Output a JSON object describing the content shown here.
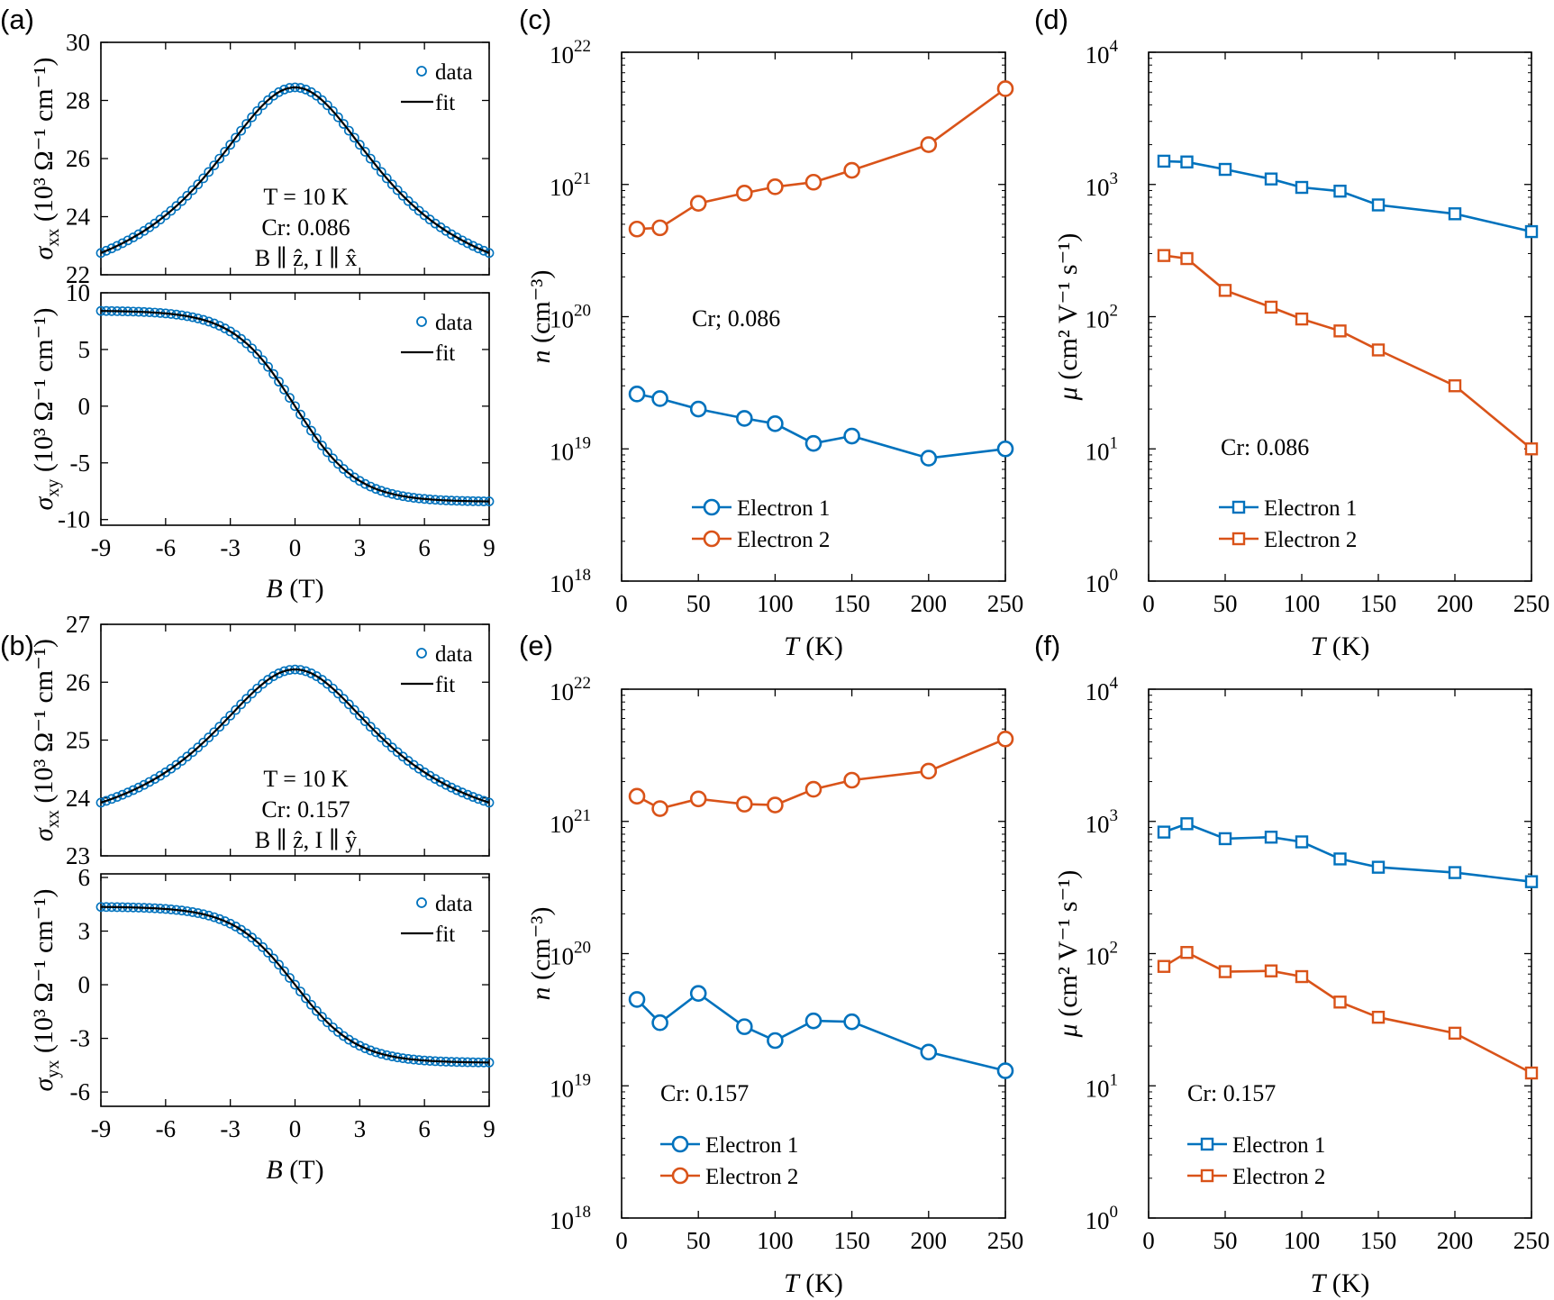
{
  "colors": {
    "blue": "#0072bd",
    "orange": "#d95319",
    "black": "#000000"
  },
  "chart_data": [
    {
      "id": "a-top",
      "label": "(a)",
      "type": "scatter",
      "xlim": [
        -9,
        9
      ],
      "ylim": [
        22,
        30
      ],
      "xticks": [
        -9,
        -6,
        -3,
        0,
        3,
        6,
        9
      ],
      "yticks": [
        22,
        24,
        26,
        28,
        30
      ],
      "xticklabels": [
        "-9",
        "-6",
        "-3",
        "0",
        "3",
        "6",
        "9"
      ],
      "yticklabels": [
        "22",
        "24",
        "26",
        "28",
        "30"
      ],
      "xticks_visible": false,
      "ylabel": {
        "sym": "σ",
        "sub": "xx",
        "unit": "(10³ Ω⁻¹ cm⁻¹)"
      },
      "model": {
        "kind": "sxx",
        "peak": 28.45,
        "edge": 22.75
      },
      "annotations": [
        "T = 10 K",
        "Cr: 0.086",
        "B ∥ ẑ, I ∥ x̂"
      ],
      "legend": [
        "data",
        "fit"
      ]
    },
    {
      "id": "a-bot",
      "label": "",
      "type": "scatter",
      "xlim": [
        -9,
        9
      ],
      "ylim": [
        -10.5,
        10
      ],
      "xticks": [
        -9,
        -6,
        -3,
        0,
        3,
        6,
        9
      ],
      "yticks": [
        -10,
        -5,
        0,
        5,
        10
      ],
      "xticklabels": [
        "-9",
        "-6",
        "-3",
        "0",
        "3",
        "6",
        "9"
      ],
      "yticklabels": [
        "-10",
        "-5",
        "0",
        "5",
        "10"
      ],
      "xticks_visible": true,
      "xlabel": {
        "sym": "B",
        "unit": "(T)"
      },
      "ylabel": {
        "sym": "σ",
        "sub": "xy",
        "unit": "(10³ Ω⁻¹ cm⁻¹)"
      },
      "model": {
        "kind": "sxy",
        "amp": 8.4
      },
      "legend": [
        "data",
        "fit"
      ]
    },
    {
      "id": "b-top",
      "label": "(b)",
      "type": "scatter",
      "xlim": [
        -9,
        9
      ],
      "ylim": [
        23,
        27
      ],
      "xticks": [
        -9,
        -6,
        -3,
        0,
        3,
        6,
        9
      ],
      "yticks": [
        23,
        24,
        25,
        26,
        27
      ],
      "xticklabels": [
        "-9",
        "-6",
        "-3",
        "0",
        "3",
        "6",
        "9"
      ],
      "yticklabels": [
        "23",
        "24",
        "25",
        "26",
        "27"
      ],
      "xticks_visible": false,
      "ylabel": {
        "sym": "σ",
        "sub": "xx",
        "unit": "(10³ Ω⁻¹ cm⁻¹)"
      },
      "model": {
        "kind": "sxx",
        "peak": 26.22,
        "edge": 23.92
      },
      "annotations": [
        "T = 10 K",
        "Cr: 0.157",
        "B ∥ ẑ, I ∥ ŷ"
      ],
      "legend": [
        "data",
        "fit"
      ]
    },
    {
      "id": "b-bot",
      "label": "",
      "type": "scatter",
      "xlim": [
        -9,
        9
      ],
      "ylim": [
        -6.8,
        6.2
      ],
      "xticks": [
        -9,
        -6,
        -3,
        0,
        3,
        6,
        9
      ],
      "yticks": [
        -6,
        -3,
        0,
        3,
        6
      ],
      "xticklabels": [
        "-9",
        "-6",
        "-3",
        "0",
        "3",
        "6",
        "9"
      ],
      "yticklabels": [
        "-6",
        "-3",
        "0",
        "3",
        "6"
      ],
      "xticks_visible": true,
      "xlabel": {
        "sym": "B",
        "unit": "(T)"
      },
      "ylabel": {
        "sym": "σ",
        "sub": "yx",
        "unit": "(10³ Ω⁻¹ cm⁻¹)"
      },
      "model": {
        "kind": "sxy",
        "amp": 4.35
      },
      "legend": [
        "data",
        "fit"
      ]
    },
    {
      "id": "c",
      "label": "(c)",
      "type": "line",
      "yscale": "log",
      "marker": "circle",
      "xlim": [
        0,
        250
      ],
      "ylim": [
        1e+18,
        1e+22
      ],
      "xticks": [
        0,
        50,
        100,
        150,
        200,
        250
      ],
      "xticklabels": [
        "0",
        "50",
        "100",
        "150",
        "200",
        "250"
      ],
      "yticks_exp": [
        18,
        19,
        20,
        21,
        22
      ],
      "xlabel": {
        "sym": "T",
        "unit": "(K)"
      },
      "ylabel": {
        "sym": "n",
        "unit": "(cm⁻³)"
      },
      "x": [
        10,
        25,
        50,
        80,
        100,
        125,
        150,
        200,
        250
      ],
      "series": [
        {
          "name": "Electron 1",
          "color": "#0072bd",
          "values": [
            2.6e+19,
            2.4e+19,
            2e+19,
            1.7e+19,
            1.55e+19,
            1.1e+19,
            1.25e+19,
            8.5e+18,
            1e+19
          ]
        },
        {
          "name": "Electron 2",
          "color": "#d95319",
          "values": [
            4.6e+20,
            4.7e+20,
            7.2e+20,
            8.6e+20,
            9.6e+20,
            1.04e+21,
            1.28e+21,
            2e+21,
            5.3e+21
          ]
        }
      ],
      "annotation": "Cr; 0.086"
    },
    {
      "id": "d",
      "label": "(d)",
      "type": "line",
      "yscale": "log",
      "marker": "square",
      "xlim": [
        0,
        250
      ],
      "ylim": [
        1,
        10000.0
      ],
      "xticks": [
        0,
        50,
        100,
        150,
        200,
        250
      ],
      "xticklabels": [
        "0",
        "50",
        "100",
        "150",
        "200",
        "250"
      ],
      "yticks_exp": [
        0,
        1,
        2,
        3,
        4
      ],
      "xlabel": {
        "sym": "T",
        "unit": "(K)"
      },
      "ylabel": {
        "sym": "μ",
        "unit": "(cm² V⁻¹ s⁻¹)"
      },
      "x": [
        10,
        25,
        50,
        80,
        100,
        125,
        150,
        200,
        250
      ],
      "series": [
        {
          "name": "Electron 1",
          "color": "#0072bd",
          "values": [
            1500,
            1480,
            1300,
            1100,
            950,
            890,
            700,
            600,
            440
          ]
        },
        {
          "name": "Electron 2",
          "color": "#d95319",
          "values": [
            290,
            275,
            158,
            118,
            96,
            78,
            56,
            30,
            10
          ]
        }
      ],
      "annotation": "Cr: 0.086"
    },
    {
      "id": "e",
      "label": "(e)",
      "type": "line",
      "yscale": "log",
      "marker": "circle",
      "xlim": [
        0,
        250
      ],
      "ylim": [
        1e+18,
        1e+22
      ],
      "xticks": [
        0,
        50,
        100,
        150,
        200,
        250
      ],
      "xticklabels": [
        "0",
        "50",
        "100",
        "150",
        "200",
        "250"
      ],
      "yticks_exp": [
        18,
        19,
        20,
        21,
        22
      ],
      "xlabel": {
        "sym": "T",
        "unit": "(K)"
      },
      "ylabel": {
        "sym": "n",
        "unit": "(cm⁻³)"
      },
      "x": [
        10,
        25,
        50,
        80,
        100,
        125,
        150,
        200,
        250
      ],
      "series": [
        {
          "name": "Electron 1",
          "color": "#0072bd",
          "values": [
            4.5e+19,
            3e+19,
            5e+19,
            2.8e+19,
            2.2e+19,
            3.1e+19,
            3.05e+19,
            1.8e+19,
            1.3e+19
          ]
        },
        {
          "name": "Electron 2",
          "color": "#d95319",
          "values": [
            1.55e+21,
            1.25e+21,
            1.48e+21,
            1.35e+21,
            1.33e+21,
            1.75e+21,
            2.05e+21,
            2.4e+21,
            4.2e+21
          ]
        }
      ],
      "annotation": "Cr:  0.157"
    },
    {
      "id": "f",
      "label": "(f)",
      "type": "line",
      "yscale": "log",
      "marker": "square",
      "xlim": [
        0,
        250
      ],
      "ylim": [
        1,
        10000.0
      ],
      "xticks": [
        0,
        50,
        100,
        150,
        200,
        250
      ],
      "xticklabels": [
        "0",
        "50",
        "100",
        "150",
        "200",
        "250"
      ],
      "yticks_exp": [
        0,
        1,
        2,
        3,
        4
      ],
      "xlabel": {
        "sym": "T",
        "unit": "(K)"
      },
      "ylabel": {
        "sym": "μ",
        "unit": "(cm² V⁻¹ s⁻¹)"
      },
      "x": [
        10,
        25,
        50,
        80,
        100,
        125,
        150,
        200,
        250
      ],
      "series": [
        {
          "name": "Electron 1",
          "color": "#0072bd",
          "values": [
            830,
            960,
            740,
            760,
            700,
            520,
            450,
            410,
            350
          ]
        },
        {
          "name": "Electron 2",
          "color": "#d95319",
          "values": [
            80,
            102,
            73,
            74,
            67,
            43,
            33,
            25,
            12.5
          ]
        }
      ],
      "annotation": "Cr:  0.157"
    }
  ]
}
